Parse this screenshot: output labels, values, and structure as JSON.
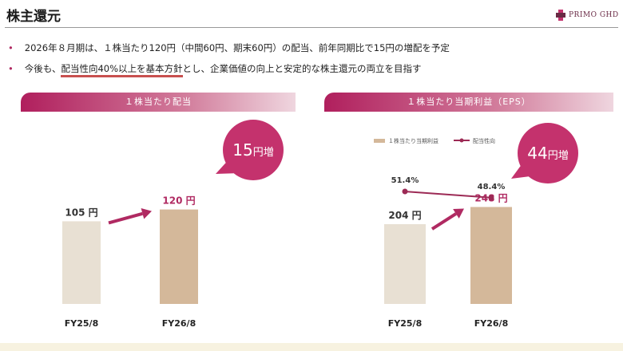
{
  "page_title": "株主還元",
  "logo_text": "PRIMO GHD",
  "bullets": [
    "2026年８月期は、１株当たり120円（中間60円、期末60円）の配当、前年同期比で15円の増配を予定",
    "今後も、",
    "配当性向40%以上を基本方針",
    "とし、企業価値の向上と安定的な株主還元の両立を目指す"
  ],
  "colors": {
    "accent": "#b02a62",
    "bar_prev": "#e8e0d3",
    "bar_cur": "#d4b89a",
    "line": "#9c2a55",
    "bubble": "#c4326d"
  },
  "chart_data": [
    {
      "type": "bar",
      "title": "１株当たり配当",
      "categories": [
        "FY25/8",
        "FY26/8"
      ],
      "values": [
        105,
        120
      ],
      "value_labels": [
        "105 円",
        "120 円"
      ],
      "ylim": [
        0,
        150
      ],
      "callout": "15円増"
    },
    {
      "type": "bar",
      "title": "１株当たり当期利益（EPS）",
      "categories": [
        "FY25/8",
        "FY26/8"
      ],
      "values": [
        204,
        248
      ],
      "value_labels": [
        "204 円",
        "248 円"
      ],
      "ylim": [
        0,
        400
      ],
      "legend": [
        "１株当たり当期利益",
        "配当性向"
      ],
      "line_series": {
        "name": "配当性向",
        "values": [
          51.4,
          48.4
        ],
        "labels": [
          "51.4%",
          "48.4%"
        ]
      },
      "callout": "44円増"
    }
  ]
}
